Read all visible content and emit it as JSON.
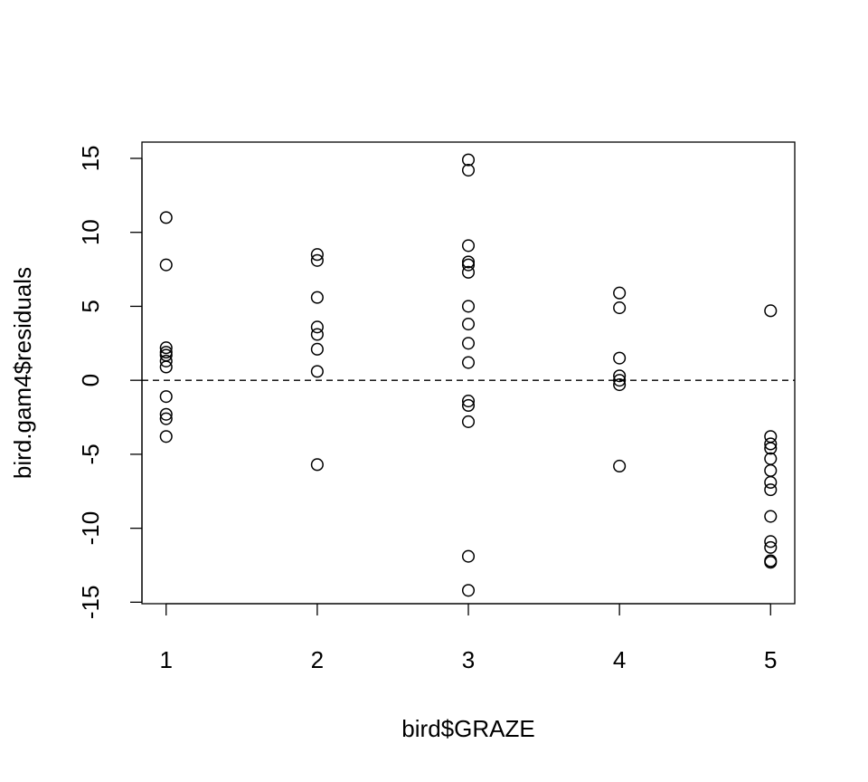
{
  "chart_data": {
    "type": "scatter",
    "title": "",
    "xlabel": "bird$GRAZE",
    "ylabel": "bird.gam4$residuals",
    "xlim": [
      0.84,
      5.16
    ],
    "ylim": [
      -15.1,
      16.1
    ],
    "xticks": [
      1,
      2,
      3,
      4,
      5
    ],
    "xtick_labels": [
      "1",
      "2",
      "3",
      "4",
      "5"
    ],
    "yticks": [
      -15,
      -10,
      -5,
      0,
      5,
      10,
      15
    ],
    "ytick_labels": [
      "-15",
      "-10",
      "-5",
      "0",
      "5",
      "10",
      "15"
    ],
    "reference_line": {
      "y": 0,
      "style": "dashed"
    },
    "grid": false,
    "points": [
      {
        "x": 1,
        "y": 11.0
      },
      {
        "x": 1,
        "y": 7.8
      },
      {
        "x": 1,
        "y": 2.2
      },
      {
        "x": 1,
        "y": 1.9
      },
      {
        "x": 1,
        "y": 1.7
      },
      {
        "x": 1,
        "y": 1.3
      },
      {
        "x": 1,
        "y": 0.9
      },
      {
        "x": 1,
        "y": -1.1
      },
      {
        "x": 1,
        "y": -2.3
      },
      {
        "x": 1,
        "y": -2.6
      },
      {
        "x": 1,
        "y": -3.8
      },
      {
        "x": 2,
        "y": 8.5
      },
      {
        "x": 2,
        "y": 8.1
      },
      {
        "x": 2,
        "y": 5.6
      },
      {
        "x": 2,
        "y": 3.6
      },
      {
        "x": 2,
        "y": 3.1
      },
      {
        "x": 2,
        "y": 2.1
      },
      {
        "x": 2,
        "y": 0.6
      },
      {
        "x": 2,
        "y": -5.7
      },
      {
        "x": 3,
        "y": 14.9
      },
      {
        "x": 3,
        "y": 14.2
      },
      {
        "x": 3,
        "y": 9.1
      },
      {
        "x": 3,
        "y": 8.0
      },
      {
        "x": 3,
        "y": 7.8
      },
      {
        "x": 3,
        "y": 7.3
      },
      {
        "x": 3,
        "y": 5.0
      },
      {
        "x": 3,
        "y": 3.8
      },
      {
        "x": 3,
        "y": 2.5
      },
      {
        "x": 3,
        "y": 1.2
      },
      {
        "x": 3,
        "y": -1.4
      },
      {
        "x": 3,
        "y": -1.7
      },
      {
        "x": 3,
        "y": -2.8
      },
      {
        "x": 3,
        "y": -11.9
      },
      {
        "x": 3,
        "y": -14.2
      },
      {
        "x": 4,
        "y": 5.9
      },
      {
        "x": 4,
        "y": 4.9
      },
      {
        "x": 4,
        "y": 1.5
      },
      {
        "x": 4,
        "y": 0.3
      },
      {
        "x": 4,
        "y": 0.0
      },
      {
        "x": 4,
        "y": -0.3
      },
      {
        "x": 4,
        "y": -5.8
      },
      {
        "x": 5,
        "y": 4.7
      },
      {
        "x": 5,
        "y": -3.8
      },
      {
        "x": 5,
        "y": -4.3
      },
      {
        "x": 5,
        "y": -4.6
      },
      {
        "x": 5,
        "y": -5.3
      },
      {
        "x": 5,
        "y": -6.1
      },
      {
        "x": 5,
        "y": -6.9
      },
      {
        "x": 5,
        "y": -7.4
      },
      {
        "x": 5,
        "y": -9.2
      },
      {
        "x": 5,
        "y": -10.9
      },
      {
        "x": 5,
        "y": -11.3
      },
      {
        "x": 5,
        "y": -12.2
      },
      {
        "x": 5,
        "y": -12.3
      }
    ]
  }
}
